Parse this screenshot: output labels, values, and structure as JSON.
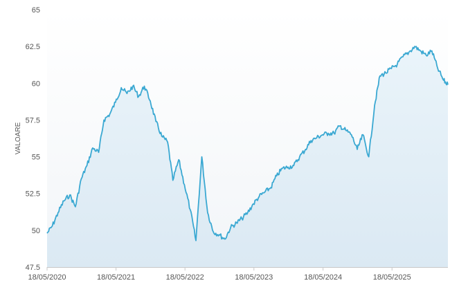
{
  "chart_data": {
    "type": "area",
    "title": "",
    "xlabel": "",
    "ylabel": "VALOARE",
    "ylim": [
      47.5,
      65
    ],
    "y_ticks": [
      47.5,
      50,
      52.5,
      55,
      57.5,
      60,
      62.5,
      65
    ],
    "y_tick_labels": [
      "47.5",
      "50",
      "52.5",
      "55",
      "57.5",
      "60",
      "62.5",
      "65"
    ],
    "x_range": [
      "2020-05-18",
      "2026-03-10"
    ],
    "x_ticks": [
      "2020-05-18",
      "2021-05-18",
      "2022-05-18",
      "2023-05-18",
      "2024-05-18",
      "2025-05-18"
    ],
    "x_tick_labels": [
      "18/05/2020",
      "18/05/2021",
      "18/05/2022",
      "18/05/2023",
      "18/05/2024",
      "18/05/2025"
    ],
    "grid": false,
    "legend": "none",
    "series": [
      {
        "color": "#3aa8d2",
        "fill_color": "#dcebf5",
        "x": [
          "2020-05-18",
          "2020-06-15",
          "2020-07-15",
          "2020-08-15",
          "2020-09-15",
          "2020-10-15",
          "2020-11-15",
          "2020-12-15",
          "2021-01-15",
          "2021-02-15",
          "2021-03-15",
          "2021-04-15",
          "2021-05-15",
          "2021-06-15",
          "2021-07-15",
          "2021-08-15",
          "2021-09-15",
          "2021-10-15",
          "2021-11-15",
          "2021-12-15",
          "2022-01-15",
          "2022-02-15",
          "2022-03-15",
          "2022-04-15",
          "2022-05-15",
          "2022-06-15",
          "2022-07-15",
          "2022-08-15",
          "2022-09-15",
          "2022-10-15",
          "2022-11-15",
          "2022-12-15",
          "2023-01-15",
          "2023-02-15",
          "2023-03-15",
          "2023-04-15",
          "2023-05-15",
          "2023-06-15",
          "2023-07-15",
          "2023-08-15",
          "2023-09-15",
          "2023-10-15",
          "2023-11-15",
          "2023-12-15",
          "2024-01-15",
          "2024-02-15",
          "2024-03-15",
          "2024-04-15",
          "2024-05-15",
          "2024-06-15",
          "2024-07-15",
          "2024-08-15",
          "2024-09-15",
          "2024-10-15",
          "2024-11-15",
          "2024-12-15",
          "2025-01-15",
          "2025-02-15",
          "2025-03-15",
          "2025-04-15",
          "2025-05-15",
          "2025-06-15",
          "2025-07-15",
          "2025-08-15",
          "2025-09-15",
          "2025-10-15",
          "2025-11-15",
          "2025-12-15",
          "2026-01-15",
          "2026-02-15",
          "2026-03-10"
        ],
        "values": [
          49.8,
          50.3,
          51.2,
          52.0,
          52.4,
          51.6,
          53.5,
          54.4,
          55.6,
          55.3,
          57.5,
          57.9,
          58.7,
          59.7,
          59.3,
          59.8,
          59.1,
          59.8,
          58.8,
          57.4,
          56.4,
          56.0,
          53.4,
          54.8,
          53.1,
          51.4,
          49.3,
          55.0,
          51.2,
          49.9,
          49.7,
          49.4,
          50.2,
          50.5,
          50.8,
          51.2,
          51.8,
          52.3,
          52.6,
          52.9,
          53.7,
          54.2,
          54.3,
          54.4,
          55.0,
          55.5,
          56.1,
          56.3,
          56.5,
          56.6,
          56.6,
          57.1,
          56.8,
          56.5,
          55.5,
          56.5,
          55.0,
          58.5,
          60.5,
          60.7,
          61.0,
          61.3,
          61.8,
          62.1,
          62.5,
          62.2,
          61.9,
          62.2,
          61.0,
          60.2,
          59.9
        ]
      }
    ]
  }
}
